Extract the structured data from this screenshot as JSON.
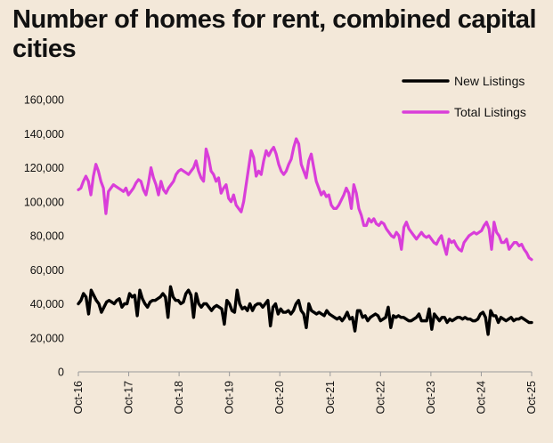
{
  "chart_data": {
    "type": "line",
    "title": "Number of homes for rent, combined capital cities",
    "xlabel": "",
    "ylabel": "",
    "ylim": [
      0,
      160000
    ],
    "yticks": [
      "0",
      "20,000",
      "40,000",
      "60,000",
      "80,000",
      "100,000",
      "120,000",
      "140,000",
      "160,000"
    ],
    "ytick_values": [
      0,
      20000,
      40000,
      60000,
      80000,
      100000,
      120000,
      140000,
      160000
    ],
    "xticks": [
      "Oct-16",
      "Oct-17",
      "Oct-18",
      "Oct-19",
      "Oct-20",
      "Oct-21",
      "Oct-22",
      "Oct-23",
      "Oct-24",
      "Oct-25"
    ],
    "legend_position": "top-right",
    "grid": false,
    "series": [
      {
        "name": "New Listings",
        "color": "#000000",
        "values": [
          40000,
          42000,
          46000,
          44000,
          34000,
          48000,
          45000,
          42000,
          40000,
          35000,
          38000,
          41000,
          42000,
          41000,
          40000,
          42000,
          43000,
          38000,
          40000,
          40000,
          46000,
          44000,
          45000,
          33000,
          48000,
          43000,
          40000,
          38000,
          41000,
          42000,
          42000,
          43000,
          44000,
          46000,
          44000,
          32000,
          50000,
          44000,
          42000,
          42000,
          40000,
          41000,
          46000,
          48000,
          45000,
          32000,
          46000,
          40000,
          38000,
          40000,
          40000,
          38000,
          36000,
          38000,
          39000,
          38000,
          37000,
          28000,
          42000,
          40000,
          36000,
          35000,
          48000,
          40000,
          37000,
          38000,
          36000,
          40000,
          36000,
          39000,
          40000,
          40000,
          38000,
          40000,
          42000,
          27000,
          38000,
          40000,
          34000,
          37000,
          35000,
          35000,
          36000,
          34000,
          36000,
          40000,
          42000,
          36000,
          34000,
          26000,
          40000,
          36000,
          35000,
          34000,
          35000,
          34000,
          33000,
          36000,
          34000,
          33000,
          32000,
          31000,
          32000,
          30000,
          32000,
          35000,
          31000,
          32000,
          24000,
          36000,
          36000,
          32000,
          33000,
          30000,
          32000,
          33000,
          34000,
          33000,
          30000,
          31000,
          32000,
          38000,
          26000,
          33000,
          32000,
          33000,
          32000,
          32000,
          31000,
          30000,
          30000,
          31000,
          32000,
          34000,
          30000,
          30000,
          30000,
          37000,
          25000,
          34000,
          32000,
          30000,
          32000,
          32000,
          29000,
          31000,
          30000,
          31000,
          32000,
          32000,
          31000,
          32000,
          31000,
          31000,
          30000,
          30000,
          31000,
          34000,
          35000,
          32000,
          22000,
          36000,
          33000,
          33000,
          29000,
          32000,
          31000,
          30000,
          31000,
          32000,
          30000,
          31000,
          31000,
          32000,
          31000,
          30000,
          29000,
          29000
        ]
      },
      {
        "name": "Total Listings",
        "color": "#d93ed9",
        "values": [
          107000,
          108000,
          112000,
          115000,
          112000,
          104000,
          115000,
          122000,
          118000,
          112000,
          108000,
          93000,
          106000,
          108000,
          110000,
          109000,
          108000,
          107000,
          106000,
          108000,
          104000,
          106000,
          108000,
          111000,
          113000,
          112000,
          107000,
          104000,
          111000,
          120000,
          114000,
          110000,
          104000,
          112000,
          107000,
          105000,
          108000,
          110000,
          112000,
          116000,
          118000,
          119000,
          118000,
          117000,
          116000,
          118000,
          120000,
          124000,
          118000,
          114000,
          112000,
          131000,
          126000,
          118000,
          116000,
          112000,
          114000,
          105000,
          108000,
          110000,
          102000,
          100000,
          104000,
          98000,
          96000,
          94000,
          100000,
          110000,
          120000,
          130000,
          126000,
          115000,
          118000,
          116000,
          124000,
          130000,
          127000,
          130000,
          132000,
          128000,
          122000,
          118000,
          116000,
          118000,
          122000,
          125000,
          132000,
          137000,
          134000,
          122000,
          118000,
          114000,
          124000,
          128000,
          120000,
          112000,
          108000,
          104000,
          106000,
          103000,
          104000,
          98000,
          96000,
          96000,
          98000,
          101000,
          104000,
          108000,
          105000,
          96000,
          110000,
          105000,
          96000,
          92000,
          86000,
          86000,
          90000,
          88000,
          90000,
          87000,
          86000,
          88000,
          87000,
          84000,
          82000,
          80000,
          79000,
          82000,
          80000,
          72000,
          85000,
          88000,
          84000,
          82000,
          80000,
          78000,
          80000,
          82000,
          80000,
          79000,
          80000,
          78000,
          76000,
          75000,
          78000,
          80000,
          74000,
          69000,
          78000,
          76000,
          77000,
          74000,
          72000,
          71000,
          76000,
          78000,
          80000,
          81000,
          82000,
          81000,
          82000,
          83000,
          86000,
          88000,
          84000,
          72000,
          88000,
          82000,
          80000,
          76000,
          76000,
          78000,
          72000,
          74000,
          76000,
          76000,
          74000,
          75000,
          72000,
          70000,
          67000,
          66000
        ]
      }
    ]
  }
}
